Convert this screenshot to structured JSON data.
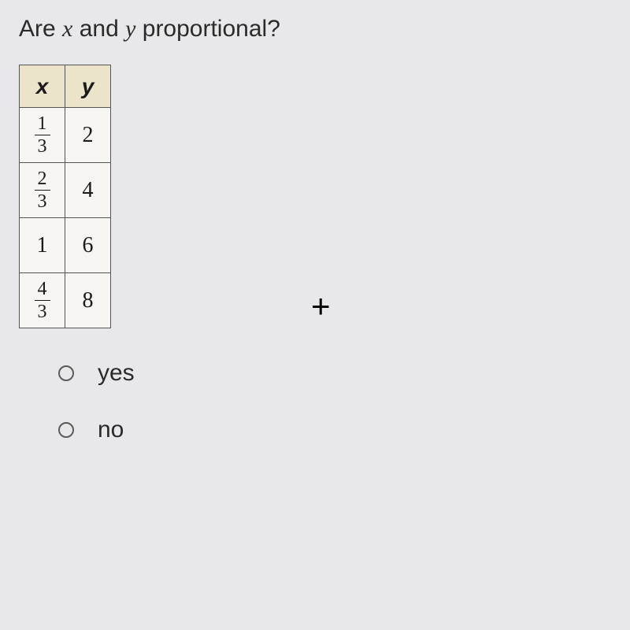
{
  "question": {
    "prefix": "Are ",
    "var1": "x",
    "mid": " and ",
    "var2": "y",
    "suffix": " proportional?"
  },
  "table": {
    "headers": {
      "col1": "x",
      "col2": "y"
    },
    "rows": [
      {
        "x_type": "fraction",
        "x_num": "1",
        "x_den": "3",
        "y": "2"
      },
      {
        "x_type": "fraction",
        "x_num": "2",
        "x_den": "3",
        "y": "4"
      },
      {
        "x_type": "integer",
        "x_val": "1",
        "y": "6"
      },
      {
        "x_type": "fraction",
        "x_num": "4",
        "x_den": "3",
        "y": "8"
      }
    ],
    "header_bg": "#ece3cb",
    "cell_bg": "#f7f5f2",
    "border_color": "#555555"
  },
  "cursor": {
    "glyph": "+"
  },
  "options": [
    {
      "label": "yes",
      "selected": false
    },
    {
      "label": "no",
      "selected": false
    }
  ]
}
